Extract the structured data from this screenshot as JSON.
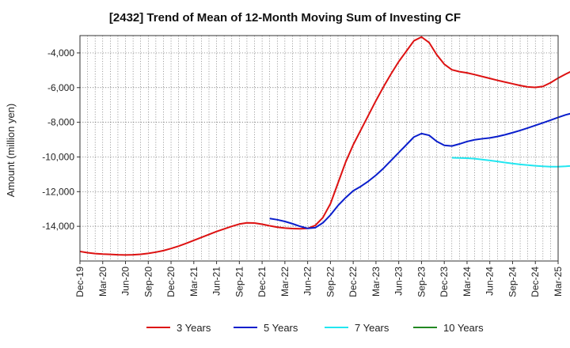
{
  "chart_data": {
    "type": "line",
    "title": "[2432]  Trend of Mean of 12-Month Moving Sum of Investing CF",
    "xlabel": "",
    "ylabel": "Amount (million yen)",
    "ylim": [
      -16000,
      -3000
    ],
    "yticks": [
      -14000,
      -12000,
      -10000,
      -8000,
      -6000,
      -4000
    ],
    "ytick_labels": [
      "-14,000",
      "-12,000",
      "-10,000",
      "-8,000",
      "-6,000",
      "-4,000"
    ],
    "xlim": [
      "2019-12",
      "2025-03"
    ],
    "xtick_labels": [
      "Dec-19",
      "Mar-20",
      "Jun-20",
      "Sep-20",
      "Dec-20",
      "Mar-21",
      "Jun-21",
      "Sep-21",
      "Dec-21",
      "Mar-22",
      "Jun-22",
      "Sep-22",
      "Dec-22",
      "Mar-23",
      "Jun-23",
      "Sep-23",
      "Dec-23",
      "Mar-24",
      "Jun-24",
      "Sep-24",
      "Dec-24",
      "Mar-25"
    ],
    "grid": true,
    "legend_position": "bottom",
    "series": [
      {
        "name": "3 Years",
        "color": "#dd1111",
        "points": [
          [
            "2019-12",
            -15450
          ],
          [
            "2020-01",
            -15520
          ],
          [
            "2020-02",
            -15570
          ],
          [
            "2020-03",
            -15600
          ],
          [
            "2020-04",
            -15620
          ],
          [
            "2020-05",
            -15640
          ],
          [
            "2020-06",
            -15650
          ],
          [
            "2020-07",
            -15640
          ],
          [
            "2020-08",
            -15610
          ],
          [
            "2020-09",
            -15560
          ],
          [
            "2020-10",
            -15490
          ],
          [
            "2020-11",
            -15400
          ],
          [
            "2020-12",
            -15280
          ],
          [
            "2021-01",
            -15140
          ],
          [
            "2021-02",
            -14980
          ],
          [
            "2021-03",
            -14810
          ],
          [
            "2021-04",
            -14640
          ],
          [
            "2021-05",
            -14470
          ],
          [
            "2021-06",
            -14300
          ],
          [
            "2021-07",
            -14150
          ],
          [
            "2021-08",
            -14000
          ],
          [
            "2021-09",
            -13870
          ],
          [
            "2021-10",
            -13800
          ],
          [
            "2021-11",
            -13810
          ],
          [
            "2021-12",
            -13880
          ],
          [
            "2022-01",
            -13970
          ],
          [
            "2022-02",
            -14050
          ],
          [
            "2022-03",
            -14100
          ],
          [
            "2022-04",
            -14130
          ],
          [
            "2022-05",
            -14140
          ],
          [
            "2022-06",
            -14120
          ],
          [
            "2022-07",
            -13950
          ],
          [
            "2022-08",
            -13500
          ],
          [
            "2022-09",
            -12700
          ],
          [
            "2022-10",
            -11500
          ],
          [
            "2022-11",
            -10300
          ],
          [
            "2022-12",
            -9300
          ],
          [
            "2023-01",
            -8450
          ],
          [
            "2023-02",
            -7600
          ],
          [
            "2023-03",
            -6750
          ],
          [
            "2023-04",
            -5950
          ],
          [
            "2023-05",
            -5200
          ],
          [
            "2023-06",
            -4500
          ],
          [
            "2023-07",
            -3900
          ],
          [
            "2023-08",
            -3300
          ],
          [
            "2023-09",
            -3080
          ],
          [
            "2023-10",
            -3400
          ],
          [
            "2023-11",
            -4100
          ],
          [
            "2023-12",
            -4650
          ],
          [
            "2024-01",
            -4970
          ],
          [
            "2024-02",
            -5080
          ],
          [
            "2024-03",
            -5150
          ],
          [
            "2024-04",
            -5250
          ],
          [
            "2024-05",
            -5360
          ],
          [
            "2024-06",
            -5470
          ],
          [
            "2024-07",
            -5580
          ],
          [
            "2024-08",
            -5680
          ],
          [
            "2024-09",
            -5780
          ],
          [
            "2024-10",
            -5880
          ],
          [
            "2024-11",
            -5960
          ],
          [
            "2024-12",
            -5990
          ],
          [
            "2025-01",
            -5930
          ],
          [
            "2025-02",
            -5720
          ],
          [
            "2025-03",
            -5450
          ],
          [
            "2025-04",
            -5220
          ],
          [
            "2025-05",
            -5000
          ],
          [
            "2025-06",
            -4800
          ]
        ]
      },
      {
        "name": "5 Years",
        "color": "#0a1ecc",
        "points": [
          [
            "2022-01",
            -13550
          ],
          [
            "2022-02",
            -13620
          ],
          [
            "2022-03",
            -13720
          ],
          [
            "2022-04",
            -13850
          ],
          [
            "2022-05",
            -14000
          ],
          [
            "2022-06",
            -14120
          ],
          [
            "2022-07",
            -14080
          ],
          [
            "2022-08",
            -13800
          ],
          [
            "2022-09",
            -13350
          ],
          [
            "2022-10",
            -12800
          ],
          [
            "2022-11",
            -12350
          ],
          [
            "2022-12",
            -11950
          ],
          [
            "2023-01",
            -11700
          ],
          [
            "2023-02",
            -11400
          ],
          [
            "2023-03",
            -11050
          ],
          [
            "2023-04",
            -10650
          ],
          [
            "2023-05",
            -10200
          ],
          [
            "2023-06",
            -9750
          ],
          [
            "2023-07",
            -9300
          ],
          [
            "2023-08",
            -8850
          ],
          [
            "2023-09",
            -8650
          ],
          [
            "2023-10",
            -8750
          ],
          [
            "2023-11",
            -9100
          ],
          [
            "2023-12",
            -9330
          ],
          [
            "2024-01",
            -9370
          ],
          [
            "2024-02",
            -9250
          ],
          [
            "2024-03",
            -9110
          ],
          [
            "2024-04",
            -9010
          ],
          [
            "2024-05",
            -8950
          ],
          [
            "2024-06",
            -8900
          ],
          [
            "2024-07",
            -8820
          ],
          [
            "2024-08",
            -8720
          ],
          [
            "2024-09",
            -8600
          ],
          [
            "2024-10",
            -8470
          ],
          [
            "2024-11",
            -8330
          ],
          [
            "2024-12",
            -8180
          ],
          [
            "2025-01",
            -8030
          ],
          [
            "2025-02",
            -7880
          ],
          [
            "2025-03",
            -7720
          ],
          [
            "2025-04",
            -7570
          ],
          [
            "2025-05",
            -7460
          ],
          [
            "2025-06",
            -7370
          ]
        ]
      },
      {
        "name": "7 Years",
        "color": "#22e6f0",
        "points": [
          [
            "2024-01",
            -10050
          ],
          [
            "2024-02",
            -10060
          ],
          [
            "2024-03",
            -10070
          ],
          [
            "2024-04",
            -10100
          ],
          [
            "2024-05",
            -10150
          ],
          [
            "2024-06",
            -10200
          ],
          [
            "2024-07",
            -10260
          ],
          [
            "2024-08",
            -10320
          ],
          [
            "2024-09",
            -10380
          ],
          [
            "2024-10",
            -10430
          ],
          [
            "2024-11",
            -10470
          ],
          [
            "2024-12",
            -10510
          ],
          [
            "2025-01",
            -10540
          ],
          [
            "2025-02",
            -10560
          ],
          [
            "2025-03",
            -10560
          ],
          [
            "2025-04",
            -10540
          ],
          [
            "2025-05",
            -10510
          ],
          [
            "2025-06",
            -10480
          ]
        ]
      },
      {
        "name": "10 Years",
        "color": "#228822",
        "points": []
      }
    ]
  }
}
